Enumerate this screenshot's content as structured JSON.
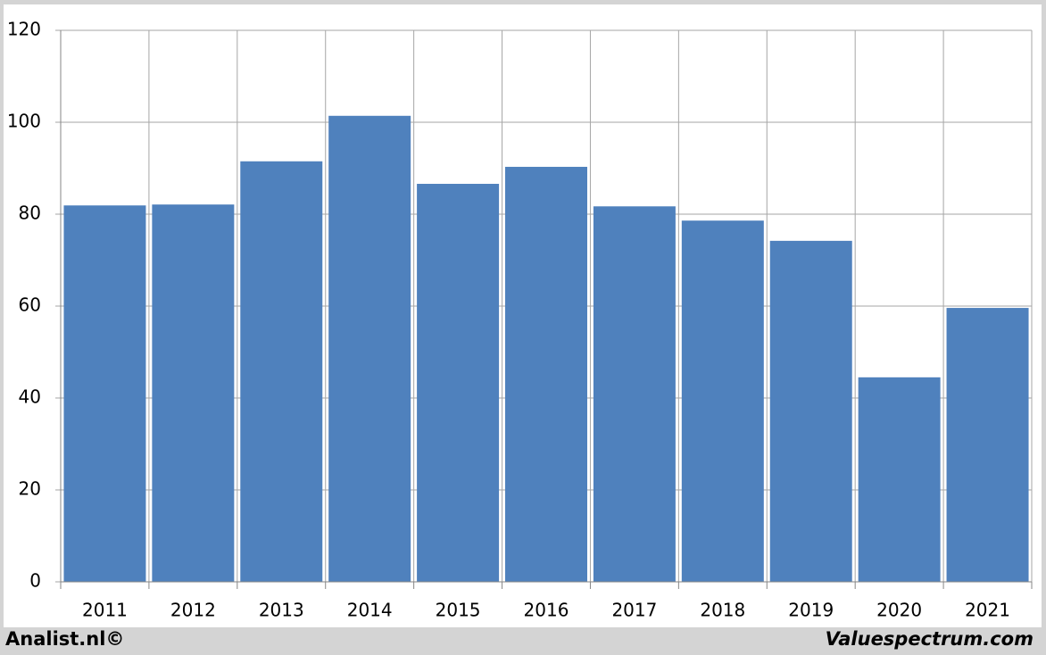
{
  "chart_data": {
    "type": "bar",
    "categories": [
      "2011",
      "2012",
      "2013",
      "2014",
      "2015",
      "2016",
      "2017",
      "2018",
      "2019",
      "2020",
      "2021"
    ],
    "values": [
      81.9,
      82.1,
      91.5,
      101.4,
      86.6,
      90.3,
      81.7,
      78.6,
      74.2,
      44.5,
      59.6
    ],
    "color": "#4f81bd",
    "ylim": [
      0,
      120
    ],
    "yticks": [
      0,
      20,
      40,
      60,
      80,
      100,
      120
    ],
    "grid": true,
    "annotations": [
      "Analist.nl©",
      "Valuespectrum.com"
    ]
  }
}
